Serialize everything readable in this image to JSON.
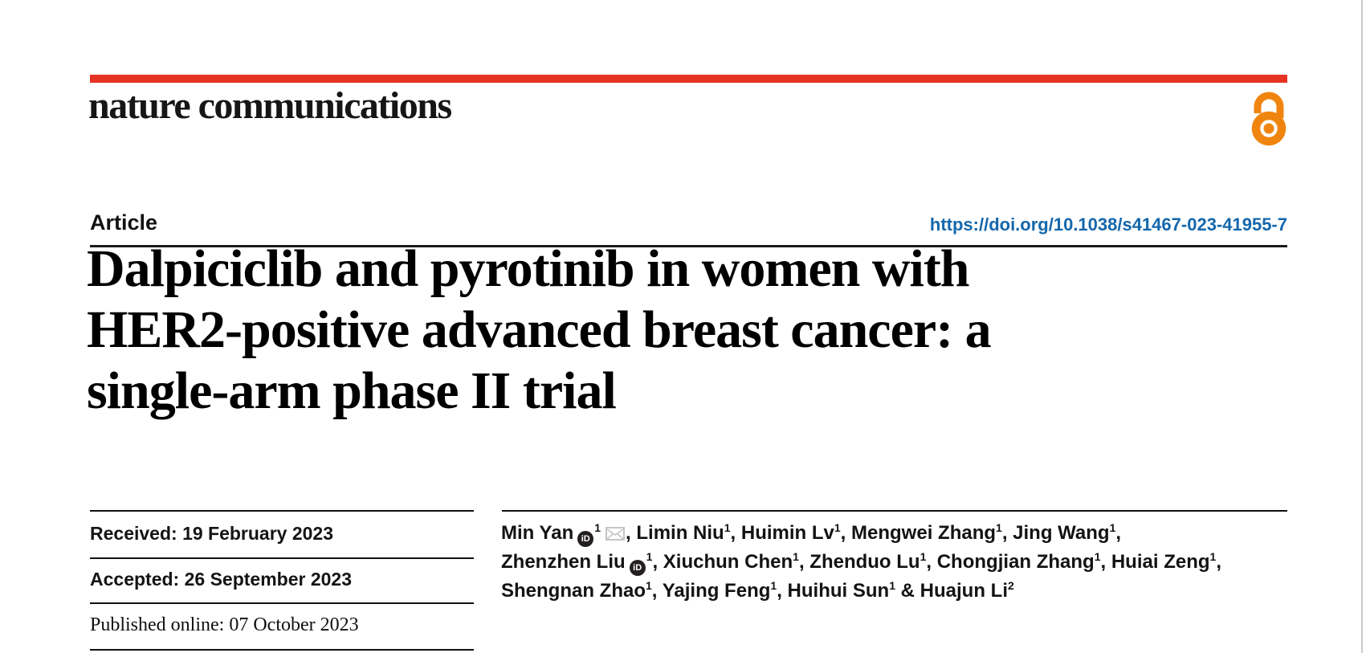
{
  "journal": {
    "name": "nature communications"
  },
  "colors": {
    "brand_red": "#e63323",
    "link_blue": "#1467ac",
    "open_access_orange": "#ef850f"
  },
  "article": {
    "type_label": "Article",
    "doi_link": "https://doi.org/10.1038/s41467-023-41955-7",
    "title_lines": [
      "Dalpiciclib and pyrotinib in women with",
      "HER2-positive advanced breast cancer: a",
      "single-arm phase II trial"
    ]
  },
  "history": {
    "received_label": "Received:",
    "received_date": "19 February 2023",
    "accepted_label": "Accepted:",
    "accepted_date": "26 September 2023",
    "published_label": "Published online:",
    "published_date": "07 October 2023"
  },
  "authors": {
    "orcid_icon_text": "iD",
    "lines": [
      {
        "segments": [
          {
            "name": "Min Yan",
            "orcid": true,
            "sup": "1",
            "email": true,
            "sep": ", "
          },
          {
            "name": "Limin Niu",
            "sup": "1",
            "sep": ", "
          },
          {
            "name": "Huimin Lv",
            "sup": "1",
            "sep": ", "
          },
          {
            "name": "Mengwei Zhang",
            "sup": "1",
            "sep": ", "
          },
          {
            "name": "Jing Wang",
            "sup": "1",
            "sep": ","
          }
        ]
      },
      {
        "segments": [
          {
            "name": "Zhenzhen Liu",
            "orcid": true,
            "sup": "1",
            "sep": ", "
          },
          {
            "name": "Xiuchun Chen",
            "sup": "1",
            "sep": ", "
          },
          {
            "name": "Zhenduo Lu",
            "sup": "1",
            "sep": ", "
          },
          {
            "name": "Chongjian Zhang",
            "sup": "1",
            "sep": ", "
          },
          {
            "name": "Huiai Zeng",
            "sup": "1",
            "sep": ","
          }
        ]
      },
      {
        "segments": [
          {
            "name": "Shengnan Zhao",
            "sup": "1",
            "sep": ", "
          },
          {
            "name": "Yajing Feng",
            "sup": "1",
            "sep": ", "
          },
          {
            "name": "Huihui Sun",
            "sup": "1",
            "sep": " & "
          },
          {
            "name": "Huajun Li",
            "sup": "2",
            "sep": ""
          }
        ]
      }
    ]
  }
}
